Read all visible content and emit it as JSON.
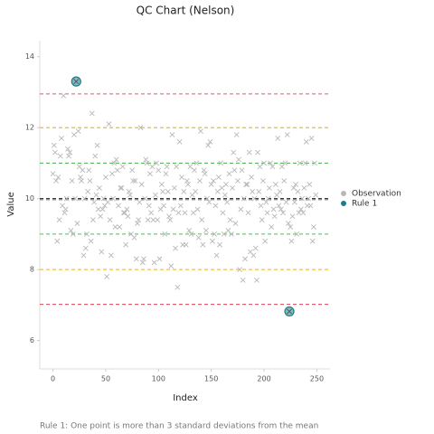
{
  "chart_data": {
    "type": "scatter",
    "title": "QC Chart (Nelson)",
    "xlabel": "Index",
    "ylabel": "Value",
    "annotation": "Rule 1: One point is more than 3 standard deviations from the mean",
    "xlim": [
      -12.5,
      262.5
    ],
    "ylim": [
      5.2,
      14.45
    ],
    "xticks": [
      0,
      50,
      100,
      150,
      200,
      250
    ],
    "yticks": [
      6,
      8,
      10,
      12,
      14
    ],
    "legend": "right",
    "control_lines": [
      {
        "value": 12.95,
        "color": "#e05a6a"
      },
      {
        "value": 12,
        "color": "#e8b020"
      },
      {
        "value": 11,
        "color": "#5cb85c"
      },
      {
        "value": 10,
        "color": "#222222"
      },
      {
        "value": 9.97,
        "color": "#777777"
      },
      {
        "value": 9,
        "color": "#5cb85c"
      },
      {
        "value": 8,
        "color": "#e8b020"
      },
      {
        "value": 7.02,
        "color": "#e05a6a"
      }
    ],
    "series": [
      {
        "name": "Observation",
        "color": "#b8b8b8",
        "x": [
          0,
          1,
          2,
          3,
          4,
          5,
          6,
          7,
          8,
          9,
          10,
          11,
          12,
          13,
          14,
          15,
          16,
          17,
          18,
          19,
          20,
          21,
          22,
          23,
          24,
          25,
          26,
          27,
          28,
          29,
          30,
          31,
          32,
          33,
          34,
          35,
          36,
          37,
          38,
          39,
          40,
          41,
          42,
          43,
          44,
          45,
          46,
          47,
          48,
          49,
          50,
          51,
          52,
          53,
          54,
          55,
          56,
          57,
          58,
          59,
          60,
          61,
          62,
          63,
          64,
          65,
          66,
          67,
          68,
          69,
          70,
          71,
          72,
          73,
          74,
          75,
          76,
          77,
          78,
          79,
          80,
          81,
          82,
          83,
          84,
          85,
          86,
          87,
          88,
          89,
          90,
          91,
          92,
          93,
          94,
          95,
          96,
          97,
          98,
          99,
          100,
          101,
          102,
          103,
          104,
          105,
          106,
          107,
          108,
          109,
          110,
          111,
          112,
          113,
          114,
          115,
          116,
          117,
          118,
          119,
          120,
          121,
          122,
          123,
          124,
          125,
          126,
          127,
          128,
          129,
          130,
          131,
          132,
          133,
          134,
          135,
          136,
          137,
          138,
          139,
          140,
          141,
          142,
          143,
          144,
          145,
          146,
          147,
          148,
          149,
          150,
          151,
          152,
          153,
          154,
          155,
          156,
          157,
          158,
          159,
          160,
          161,
          162,
          163,
          164,
          165,
          166,
          167,
          168,
          169,
          170,
          171,
          172,
          173,
          174,
          175,
          176,
          177,
          178,
          179,
          180,
          181,
          182,
          183,
          184,
          185,
          186,
          187,
          188,
          189,
          190,
          191,
          192,
          193,
          194,
          195,
          196,
          197,
          198,
          199,
          200,
          201,
          202,
          203,
          204,
          205,
          206,
          207,
          208,
          209,
          210,
          211,
          212,
          213,
          214,
          215,
          216,
          217,
          218,
          219,
          220,
          221,
          222,
          223,
          224,
          225,
          226,
          227,
          228,
          229,
          230,
          231,
          232,
          233,
          234,
          235,
          236,
          237,
          238,
          239,
          240,
          241,
          242,
          243,
          244,
          245,
          246,
          247,
          248,
          249
        ],
        "values": [
          10.7,
          11.5,
          11.3,
          10.5,
          8.8,
          10.6,
          9.4,
          11.2,
          11.7,
          9.8,
          12.9,
          9.6,
          9.7,
          10.0,
          11.4,
          11.2,
          11.3,
          9.1,
          10.5,
          9.0,
          11.8,
          10.0,
          13.3,
          9.3,
          11.9,
          10.9,
          10.6,
          10.5,
          10.8,
          8.4,
          10.0,
          8.6,
          9.0,
          10.2,
          10.8,
          10.5,
          8.8,
          12.4,
          9.4,
          9.9,
          11.2,
          10.1,
          11.5,
          9.7,
          10.3,
          9.5,
          8.5,
          9.7,
          10.0,
          9.8,
          10.6,
          7.8,
          9.9,
          12.1,
          9.4,
          8.4,
          10.7,
          10.0,
          11.0,
          9.2,
          11.1,
          10.8,
          9.8,
          9.2,
          10.3,
          10.3,
          10.9,
          9.6,
          9.6,
          8.7,
          9.7,
          9.5,
          10.2,
          10.1,
          9.0,
          10.8,
          10.5,
          8.9,
          10.5,
          8.3,
          9.3,
          9.4,
          9.9,
          12.0,
          10.4,
          8.2,
          8.3,
          10.0,
          11.1,
          11.0,
          9.4,
          9.8,
          10.7,
          9.6,
          10.9,
          9.4,
          8.2,
          10.1,
          11.0,
          9.4,
          10.8,
          8.3,
          9.7,
          10.4,
          10.2,
          9.8,
          9.0,
          10.7,
          10.9,
          10.2,
          9.5,
          9.4,
          8.1,
          11.8,
          9.7,
          10.3,
          8.6,
          10.9,
          7.5,
          9.6,
          11.6,
          9.8,
          10.6,
          8.7,
          10.2,
          9.6,
          8.7,
          10.5,
          10.4,
          9.1,
          10.9,
          9.0,
          10.1,
          9.6,
          10.8,
          10.2,
          11.0,
          9.7,
          8.9,
          10.5,
          11.9,
          9.4,
          8.7,
          10.8,
          10.7,
          9.1,
          10.0,
          11.5,
          9.9,
          11.6,
          10.4,
          8.8,
          10.5,
          9.0,
          9.8,
          8.4,
          10.2,
          10.6,
          8.7,
          11.0,
          10.3,
          9.6,
          9.0,
          10.1,
          10.4,
          9.9,
          9.1,
          10.7,
          9.4,
          9.0,
          10.3,
          11.3,
          10.8,
          9.3,
          11.8,
          10.5,
          11.1,
          8.0,
          9.7,
          10.8,
          7.7,
          10.0,
          8.3,
          10.4,
          10.4,
          9.6,
          11.3,
          8.5,
          10.6,
          10.2,
          8.4,
          10.0,
          8.6,
          7.7,
          11.3,
          10.2,
          10.9,
          9.8,
          9.4,
          10.5,
          11.0,
          8.8,
          9.9,
          9.6,
          10.0,
          10.3,
          11.0,
          9.2,
          10.9,
          9.7,
          9.5,
          10.4,
          10.1,
          11.7,
          9.8,
          10.2,
          9.7,
          10.9,
          9.6,
          10.5,
          11.0,
          9.9,
          11.8,
          9.3,
          6.82,
          9.2,
          8.8,
          9.5,
          10.3,
          9.9,
          10.4,
          9.0,
          10.2,
          9.6,
          11.0,
          9.7,
          10.0,
          9.6,
          10.3,
          11.0,
          11.6,
          9.8,
          10.0,
          10.4,
          9.8,
          11.7,
          8.8,
          9.2,
          11.0,
          10.1
        ]
      },
      {
        "name": "Rule 1",
        "color": "#1a7f8c",
        "x": [
          22,
          224
        ],
        "values": [
          13.3,
          6.82
        ]
      }
    ]
  }
}
